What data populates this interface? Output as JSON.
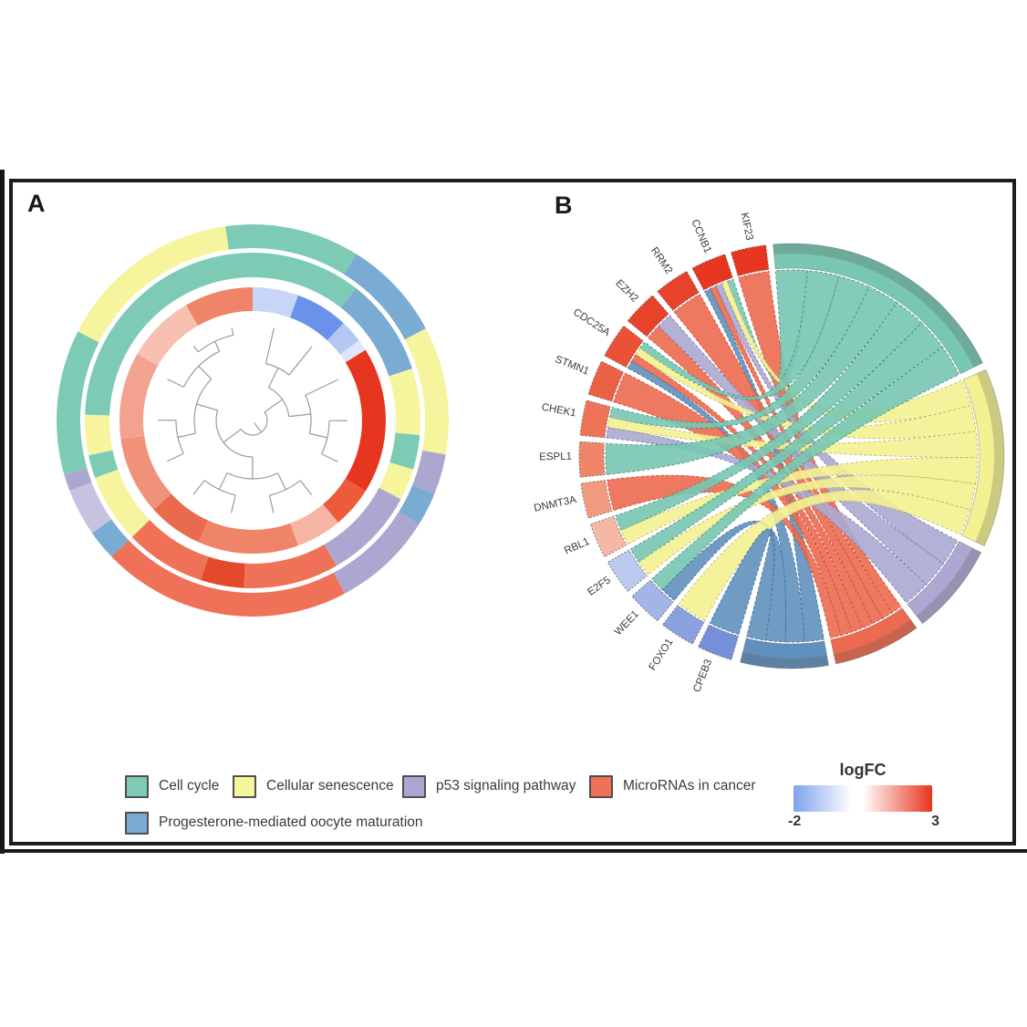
{
  "figure": {
    "panel_a_label": "A",
    "panel_b_label": "B"
  },
  "legend": {
    "items": [
      {
        "label": "Cell cycle",
        "color": "#7DCBB4"
      },
      {
        "label": "Cellular senescence",
        "color": "#F6F49D"
      },
      {
        "label": "p53 signaling pathway",
        "color": "#ABA7D1"
      },
      {
        "label": "MicroRNAs in cancer",
        "color": "#EF7258"
      },
      {
        "label": "Progesterone-mediated oocyte maturation",
        "color": "#7AABD2"
      }
    ]
  },
  "colorbar": {
    "title": "logFC",
    "min_label": "-2",
    "max_label": "3",
    "gradient": [
      "#7FA3EE",
      "#FFFFFF",
      "#E8341E"
    ]
  },
  "chart_data": [
    {
      "type": "circular-dendrogram-heatmap",
      "panel": "A",
      "palette": {
        "cell_cycle": "#7DCBB4",
        "senescence": "#F6F49D",
        "p53": "#ABA7D1",
        "mirna": "#EF7258",
        "progesterone": "#7AABD2",
        "purple_light": "#C6C2E0",
        "mirna_dark": "#E4492C"
      },
      "rings": {
        "outer": [
          [
            -8,
            32,
            "cell_cycle"
          ],
          [
            32,
            62,
            "progesterone"
          ],
          [
            62,
            100,
            "senescence"
          ],
          [
            100,
            112,
            "p53"
          ],
          [
            112,
            122,
            "progesterone"
          ],
          [
            122,
            152,
            "p53"
          ],
          [
            152,
            226,
            "mirna"
          ],
          [
            226,
            235,
            "progesterone"
          ],
          [
            235,
            249,
            "purple_light"
          ],
          [
            249,
            254,
            "p53"
          ],
          [
            254,
            297,
            "cell_cycle"
          ],
          [
            297,
            352,
            "senescence"
          ]
        ],
        "middle": [
          [
            -55,
            38,
            "cell_cycle"
          ],
          [
            38,
            72,
            "progesterone"
          ],
          [
            72,
            95,
            "senescence"
          ],
          [
            95,
            107,
            "cell_cycle"
          ],
          [
            107,
            118,
            "senescence"
          ],
          [
            118,
            150,
            "p53"
          ],
          [
            150,
            183,
            "mirna"
          ],
          [
            183,
            198,
            "mirna_dark"
          ],
          [
            198,
            226,
            "mirna"
          ],
          [
            226,
            250,
            "senescence"
          ],
          [
            250,
            258,
            "cell_cycle"
          ],
          [
            258,
            272,
            "senescence"
          ],
          [
            272,
            305,
            "cell_cycle"
          ]
        ],
        "inner_logfc": [
          [
            0,
            20,
            "#C7D5F6"
          ],
          [
            20,
            43,
            "#6A92EA"
          ],
          [
            43,
            53,
            "#B4C7F2"
          ],
          [
            53,
            58,
            "#DDE6FB"
          ],
          [
            58,
            122,
            "#E7361F"
          ],
          [
            122,
            140,
            "#EB5B3C"
          ],
          [
            140,
            160,
            "#F6B4A3"
          ],
          [
            160,
            204,
            "#EF8468"
          ],
          [
            204,
            228,
            "#EA6A4E"
          ],
          [
            228,
            262,
            "#F0917A"
          ],
          [
            262,
            300,
            "#F2A28E"
          ],
          [
            300,
            330,
            "#F7C0B0"
          ],
          [
            330,
            360,
            "#EF8468"
          ]
        ]
      },
      "dendrogram": {
        "leaf_count": 14,
        "tree": [
          [
            [
              0,
              1
            ],
            [
              2,
              [
                3,
                4
              ]
            ]
          ],
          [
            [
              [
                5,
                6
              ],
              [
                7,
                8
              ]
            ],
            [
              [
                9,
                10
              ],
              [
                11,
                [
                  12,
                  13
                ]
              ]
            ]
          ]
        ]
      }
    },
    {
      "type": "chord",
      "panel": "B",
      "genes": [
        {
          "name": "KIF23",
          "logfc": 2.9,
          "color": "#E7361F",
          "a1": -16.6,
          "a2": -7
        },
        {
          "name": "CCNB1",
          "logfc": 2.8,
          "color": "#E7361F",
          "a1": -27.9,
          "a2": -18.3
        },
        {
          "name": "RRM2",
          "logfc": 2.6,
          "color": "#E8422A",
          "a1": -39.2,
          "a2": -29.6
        },
        {
          "name": "EZH2",
          "logfc": 2.5,
          "color": "#E8422A",
          "a1": -50.5,
          "a2": -40.9
        },
        {
          "name": "CDC25A",
          "logfc": 2.2,
          "color": "#EA5136",
          "a1": -61.8,
          "a2": -52.2
        },
        {
          "name": "STMN1",
          "logfc": 2.0,
          "color": "#EC6146",
          "a1": -73.1,
          "a2": -63.5
        },
        {
          "name": "CHEK1",
          "logfc": 1.8,
          "color": "#EE7458",
          "a1": -84.4,
          "a2": -74.8
        },
        {
          "name": "ESPL1",
          "logfc": 1.6,
          "color": "#F08669",
          "a1": -95.7,
          "a2": -86.1
        },
        {
          "name": "DNMT3A",
          "logfc": 1.4,
          "color": "#F29A80",
          "a1": -107.0,
          "a2": -97.4
        },
        {
          "name": "RBL1",
          "logfc": 0.9,
          "color": "#F5B8A4",
          "a1": -118.3,
          "a2": -108.7
        },
        {
          "name": "E2F5",
          "logfc": -0.9,
          "color": "#BCC9EE",
          "a1": -129.6,
          "a2": -120.0
        },
        {
          "name": "WEE1",
          "logfc": -1.2,
          "color": "#A3B5E8",
          "a1": -140.9,
          "a2": -131.3
        },
        {
          "name": "FOXO1",
          "logfc": -1.6,
          "color": "#8BA1DF",
          "a1": -152.2,
          "a2": -142.6
        },
        {
          "name": "CPEB3",
          "logfc": -1.9,
          "color": "#7590D8",
          "a1": -163.5,
          "a2": -153.9
        }
      ],
      "pathways": [
        {
          "key": "cell_cycle",
          "name": "Cell cycle",
          "color": "#77C7B1",
          "stroke": "#3E8A74",
          "a1": -5,
          "a2": 64
        },
        {
          "key": "senescence",
          "name": "Cellular senescence",
          "color": "#F4F191",
          "stroke": "#B8B463",
          "a1": 66,
          "a2": 115
        },
        {
          "key": "p53",
          "name": "p53 signaling pathway",
          "color": "#ACA8D2",
          "stroke": "#7A74AD",
          "a1": 117,
          "a2": 142
        },
        {
          "key": "mirna",
          "name": "MicroRNAs in cancer",
          "color": "#EC6A4F",
          "stroke": "#C24A32",
          "a1": 144,
          "a2": 168
        },
        {
          "key": "progesterone",
          "name": "Progesterone-mediated oocyte maturation",
          "color": "#6090BC",
          "stroke": "#3D6B99",
          "a1": 170,
          "a2": 194
        }
      ],
      "links": [
        {
          "gene": "KIF23",
          "pathway": "mirna"
        },
        {
          "gene": "CCNB1",
          "pathway": "cell_cycle"
        },
        {
          "gene": "CCNB1",
          "pathway": "senescence"
        },
        {
          "gene": "CCNB1",
          "pathway": "p53"
        },
        {
          "gene": "CCNB1",
          "pathway": "mirna"
        },
        {
          "gene": "CCNB1",
          "pathway": "progesterone"
        },
        {
          "gene": "RRM2",
          "pathway": "mirna"
        },
        {
          "gene": "EZH2",
          "pathway": "mirna"
        },
        {
          "gene": "EZH2",
          "pathway": "p53"
        },
        {
          "gene": "CDC25A",
          "pathway": "cell_cycle"
        },
        {
          "gene": "CDC25A",
          "pathway": "senescence"
        },
        {
          "gene": "CDC25A",
          "pathway": "mirna"
        },
        {
          "gene": "CDC25A",
          "pathway": "progesterone"
        },
        {
          "gene": "STMN1",
          "pathway": "mirna"
        },
        {
          "gene": "CHEK1",
          "pathway": "cell_cycle"
        },
        {
          "gene": "CHEK1",
          "pathway": "senescence"
        },
        {
          "gene": "CHEK1",
          "pathway": "p53"
        },
        {
          "gene": "ESPL1",
          "pathway": "cell_cycle"
        },
        {
          "gene": "DNMT3A",
          "pathway": "mirna"
        },
        {
          "gene": "RBL1",
          "pathway": "cell_cycle"
        },
        {
          "gene": "RBL1",
          "pathway": "senescence"
        },
        {
          "gene": "E2F5",
          "pathway": "cell_cycle"
        },
        {
          "gene": "E2F5",
          "pathway": "senescence"
        },
        {
          "gene": "WEE1",
          "pathway": "cell_cycle"
        },
        {
          "gene": "WEE1",
          "pathway": "progesterone"
        },
        {
          "gene": "FOXO1",
          "pathway": "senescence"
        },
        {
          "gene": "CPEB3",
          "pathway": "progesterone"
        }
      ]
    }
  ]
}
